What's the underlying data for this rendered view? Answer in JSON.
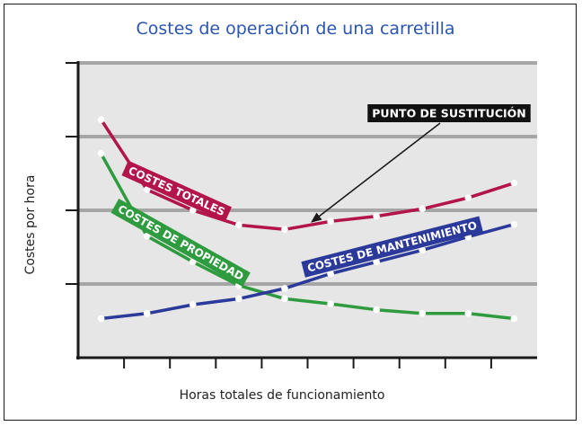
{
  "chart_data": {
    "type": "line",
    "title": "Costes de operación de una carretilla",
    "xlabel": "Horas totales de funcionamiento",
    "ylabel": "Costes por hora",
    "x": [
      1,
      2,
      3,
      4,
      5,
      6,
      7,
      8,
      9,
      10
    ],
    "xlim": [
      0.5,
      10.5
    ],
    "ylim": [
      0,
      4
    ],
    "grid": true,
    "series": [
      {
        "name": "COSTES TOTALES",
        "color": "#b3154a",
        "values": [
          3.23,
          2.28,
          2.0,
          1.8,
          1.74,
          1.85,
          1.92,
          2.02,
          2.17,
          2.37
        ]
      },
      {
        "name": "COSTES DE PROPIEDAD",
        "color": "#2f9b3f",
        "values": [
          2.77,
          1.65,
          1.3,
          0.98,
          0.8,
          0.73,
          0.65,
          0.6,
          0.6,
          0.53
        ]
      },
      {
        "name": "COSTES DE MANTENIMIENTO",
        "color": "#2b3a9a",
        "values": [
          0.53,
          0.6,
          0.72,
          0.8,
          0.94,
          1.14,
          1.3,
          1.46,
          1.64,
          1.81
        ]
      }
    ],
    "annotations": [
      {
        "text": "PUNTO DE SUSTITUCIÓN",
        "target_x": 5.6,
        "target_y": 1.81
      }
    ]
  }
}
